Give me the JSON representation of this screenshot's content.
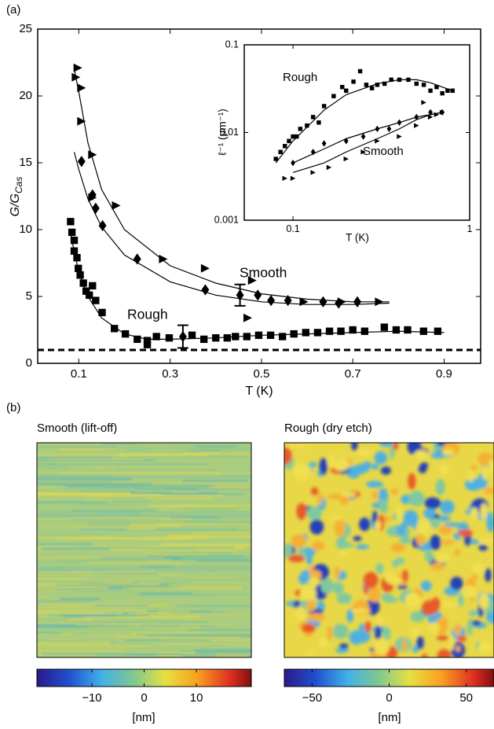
{
  "labels": {
    "a": "(a)",
    "b": "(b)"
  },
  "chart_data": [
    {
      "type": "scatter",
      "xlabel": "T (K)",
      "ylabel": {
        "main": "G/G",
        "sub": "Cas"
      },
      "xlim": [
        0.01,
        0.98
      ],
      "ylim": [
        0,
        25
      ],
      "xticks": [
        0.1,
        0.3,
        0.5,
        0.7,
        0.9
      ],
      "yticks": [
        0,
        5,
        10,
        15,
        20,
        25
      ],
      "reference_line": 1,
      "annotations": [
        "Smooth",
        "Rough"
      ],
      "series": [
        {
          "marker": "triangle",
          "color": "#000000",
          "x": [
            0.094,
            0.098,
            0.106,
            0.106,
            0.13,
            0.13,
            0.182,
            0.285,
            0.377,
            0.48,
            0.47,
            0.593,
            0.676,
            0.758
          ],
          "values": [
            21.4,
            22.1,
            20.6,
            18.1,
            15.6,
            12.4,
            11.8,
            7.8,
            7.1,
            6.2,
            3.4,
            4.6,
            4.6,
            4.6
          ]
        },
        {
          "marker": "diamond",
          "color": "#000000",
          "x": [
            0.106,
            0.13,
            0.137,
            0.152,
            0.228,
            0.377,
            0.492,
            0.521,
            0.558,
            0.635,
            0.669,
            0.71
          ],
          "values": [
            15.1,
            12.6,
            11.6,
            10.3,
            7.8,
            5.5,
            5.1,
            4.7,
            4.7,
            4.6,
            4.5,
            4.6
          ]
        },
        {
          "marker": "square",
          "color": "#000000",
          "x": [
            0.082,
            0.085,
            0.09,
            0.09,
            0.096,
            0.099,
            0.103,
            0.11,
            0.116,
            0.123,
            0.13,
            0.137,
            0.151,
            0.178,
            0.202,
            0.228,
            0.25,
            0.25,
            0.27,
            0.298,
            0.348,
            0.374,
            0.4,
            0.425,
            0.443,
            0.468,
            0.494,
            0.52,
            0.546,
            0.571,
            0.597,
            0.623,
            0.649,
            0.674,
            0.7,
            0.726,
            0.769,
            0.795,
            0.82,
            0.855,
            0.886
          ],
          "values": [
            10.6,
            9.8,
            9.2,
            8.4,
            7.9,
            7.1,
            6.6,
            6.0,
            5.4,
            5.1,
            5.8,
            4.7,
            3.8,
            2.6,
            2.2,
            1.8,
            1.7,
            1.4,
            2.0,
            1.9,
            2.1,
            1.8,
            1.9,
            1.9,
            2.0,
            2.0,
            2.1,
            2.1,
            2.0,
            2.2,
            2.3,
            2.3,
            2.4,
            2.4,
            2.5,
            2.4,
            2.7,
            2.5,
            2.5,
            2.4,
            2.4
          ]
        }
      ],
      "fits": [
        {
          "x": [
            0.09,
            0.1,
            0.12,
            0.15,
            0.2,
            0.3,
            0.4,
            0.5,
            0.6,
            0.7,
            0.78
          ],
          "values": [
            22,
            20.3,
            16.5,
            13,
            10,
            7.3,
            6,
            5.2,
            4.8,
            4.6,
            4.6
          ]
        },
        {
          "x": [
            0.09,
            0.1,
            0.12,
            0.15,
            0.2,
            0.3,
            0.4,
            0.5,
            0.6,
            0.7,
            0.78
          ],
          "values": [
            15.8,
            14.5,
            12.3,
            10.2,
            8.1,
            6.1,
            5.1,
            4.6,
            4.4,
            4.4,
            4.5
          ]
        },
        {
          "x": [
            0.08,
            0.1,
            0.12,
            0.15,
            0.2,
            0.25,
            0.3,
            0.4,
            0.5,
            0.6,
            0.7,
            0.8,
            0.9
          ],
          "values": [
            10,
            6.8,
            5.0,
            3.4,
            2.2,
            1.8,
            1.8,
            1.9,
            2.1,
            2.2,
            2.3,
            2.4,
            2.3
          ]
        }
      ],
      "errorbars": [
        {
          "x": 0.453,
          "y": 5.1,
          "err": 0.8
        },
        {
          "x": 0.328,
          "y": 2.0,
          "err": 0.85
        }
      ]
    },
    {
      "type": "scatter",
      "log_x": true,
      "log_y": true,
      "xlabel": "T (K)",
      "ylabel": "ℓ⁻¹ (μm⁻¹)",
      "xlim": [
        0.053,
        1
      ],
      "ylim": [
        0.001,
        0.1
      ],
      "xticks": [
        0.1,
        1
      ],
      "yticks": [
        0.001,
        0.01,
        0.1
      ],
      "annotations": [
        "Rough",
        "Smooth"
      ],
      "series": [
        {
          "marker": "square",
          "color": "#000000",
          "x": [
            0.08,
            0.085,
            0.09,
            0.095,
            0.1,
            0.105,
            0.11,
            0.12,
            0.13,
            0.14,
            0.15,
            0.17,
            0.19,
            0.2,
            0.22,
            0.24,
            0.26,
            0.28,
            0.3,
            0.33,
            0.36,
            0.4,
            0.45,
            0.5,
            0.55,
            0.6,
            0.65,
            0.7,
            0.75,
            0.8
          ],
          "values": [
            0.005,
            0.006,
            0.007,
            0.008,
            0.009,
            0.009,
            0.011,
            0.012,
            0.015,
            0.013,
            0.02,
            0.026,
            0.033,
            0.03,
            0.038,
            0.05,
            0.035,
            0.032,
            0.035,
            0.036,
            0.04,
            0.04,
            0.04,
            0.036,
            0.035,
            0.03,
            0.033,
            0.028,
            0.03,
            0.03
          ]
        },
        {
          "marker": "diamond",
          "color": "#000000",
          "x": [
            0.1,
            0.13,
            0.15,
            0.2,
            0.25,
            0.3,
            0.35,
            0.4,
            0.5,
            0.6,
            0.7
          ],
          "values": [
            0.0045,
            0.006,
            0.0075,
            0.008,
            0.009,
            0.011,
            0.011,
            0.013,
            0.015,
            0.017,
            0.017
          ]
        },
        {
          "marker": "triangle",
          "color": "#000000",
          "x": [
            0.09,
            0.1,
            0.13,
            0.16,
            0.2,
            0.25,
            0.3,
            0.4,
            0.5,
            0.55,
            0.6,
            0.65,
            0.7
          ],
          "values": [
            0.003,
            0.003,
            0.0035,
            0.004,
            0.005,
            0.006,
            0.008,
            0.009,
            0.012,
            0.022,
            0.015,
            0.016,
            0.017
          ]
        }
      ],
      "fits": [
        {
          "x": [
            0.08,
            0.1,
            0.15,
            0.2,
            0.3,
            0.4,
            0.5,
            0.6,
            0.7,
            0.8
          ],
          "values": [
            0.0045,
            0.008,
            0.018,
            0.027,
            0.036,
            0.04,
            0.04,
            0.037,
            0.033,
            0.03
          ]
        },
        {
          "x": [
            0.1,
            0.15,
            0.2,
            0.3,
            0.4,
            0.5,
            0.6,
            0.7
          ],
          "values": [
            0.0045,
            0.0065,
            0.0085,
            0.011,
            0.013,
            0.015,
            0.016,
            0.017
          ]
        },
        {
          "x": [
            0.1,
            0.15,
            0.2,
            0.3,
            0.4,
            0.5,
            0.6,
            0.7
          ],
          "values": [
            0.0035,
            0.0045,
            0.006,
            0.0085,
            0.011,
            0.014,
            0.016,
            0.017
          ]
        }
      ]
    }
  ],
  "images": [
    {
      "title": "Smooth (lift-off)",
      "colorbar": {
        "clim": [
          -20.5,
          20.5
        ],
        "ticks": [
          {
            "value": -10,
            "label": "−10"
          },
          0,
          10
        ],
        "unit": "[nm]"
      }
    },
    {
      "title": "Rough (dry etch)",
      "colorbar": {
        "clim": [
          -68,
          68
        ],
        "ticks": [
          {
            "value": -50,
            "label": "−50"
          },
          0,
          50
        ],
        "unit": "[nm]"
      }
    }
  ]
}
